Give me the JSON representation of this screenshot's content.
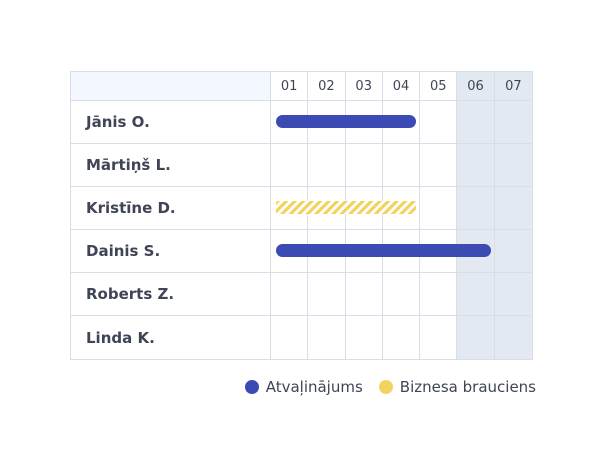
{
  "calendar": {
    "days": [
      "01",
      "02",
      "03",
      "04",
      "05",
      "06",
      "07"
    ],
    "weekend_days": [
      "06",
      "07"
    ],
    "employees": [
      {
        "name": "Jānis O.",
        "absence": {
          "type": "vacation",
          "start_day": 1,
          "end_day": 4
        }
      },
      {
        "name": "Mārtiņš L.",
        "absence": null
      },
      {
        "name": "Kristīne D.",
        "absence": {
          "type": "business",
          "start_day": 1,
          "end_day": 4
        }
      },
      {
        "name": "Dainis S.",
        "absence": {
          "type": "vacation",
          "start_day": 1,
          "end_day": 6
        }
      },
      {
        "name": "Roberts Z.",
        "absence": null
      },
      {
        "name": "Linda K.",
        "absence": null
      }
    ]
  },
  "legend": {
    "vacation_label": "Atvaļinājums",
    "vacation_color": "#3c4bb3",
    "business_label": "Biznesa brauciens",
    "business_color": "#f3d35f"
  }
}
